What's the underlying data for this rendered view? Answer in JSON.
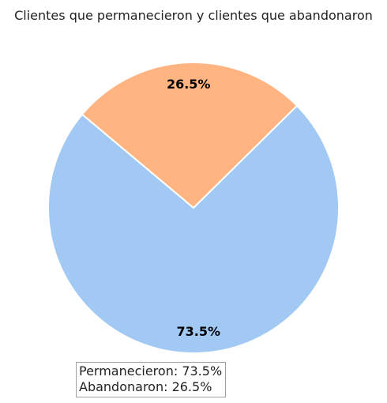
{
  "chart_data": {
    "type": "pie",
    "title": "Clientes que permanecieron y clientes que abandonaron",
    "slices": [
      {
        "value": 73.5,
        "label": "73.5%",
        "color": "#a1c9f4"
      },
      {
        "value": 26.5,
        "label": "26.5%",
        "color": "#ffb482"
      }
    ],
    "start_angle_deg": 140,
    "direction": "counterclockwise",
    "edge_color": "#ffffff",
    "annotation": {
      "lines": [
        "Permanecieron: 73.5%",
        "Abandonaron: 26.5%"
      ]
    }
  }
}
